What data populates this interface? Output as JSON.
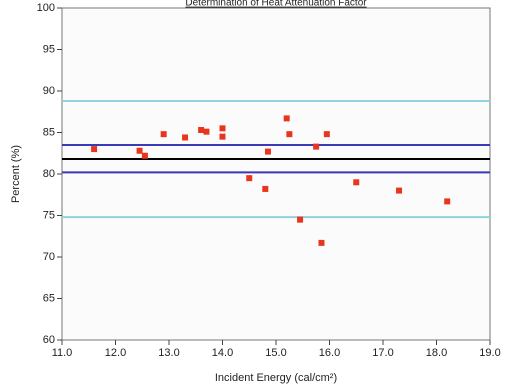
{
  "chart_data": {
    "type": "scatter",
    "title": "Determination of Heat Attenuation Factor",
    "xlabel": "Incident Energy (cal/cm²)",
    "ylabel": "Percent (%)",
    "x": [
      11.6,
      12.45,
      12.55,
      12.9,
      13.3,
      13.6,
      13.7,
      14.0,
      14.0,
      14.5,
      14.8,
      14.85,
      15.2,
      15.25,
      15.45,
      15.75,
      15.85,
      15.95,
      16.5,
      17.3,
      18.2
    ],
    "values": [
      83.0,
      82.8,
      82.2,
      84.8,
      84.4,
      85.3,
      85.1,
      84.5,
      85.5,
      79.5,
      78.2,
      82.7,
      86.7,
      84.8,
      74.5,
      83.3,
      71.7,
      84.8,
      79.0,
      78.0,
      76.7
    ],
    "color": "#e8361e",
    "reference_lines": [
      {
        "value": 88.8,
        "color": "#8fd3e0"
      },
      {
        "value": 83.5,
        "color": "#3a3ab8"
      },
      {
        "value": 81.8,
        "color": "#000000"
      },
      {
        "value": 80.2,
        "color": "#3a3ab8"
      },
      {
        "value": 74.8,
        "color": "#8fd3e0"
      }
    ],
    "xlim": [
      11.0,
      19.0
    ],
    "xticks": [
      {
        "value": 11,
        "label": "11.0"
      },
      {
        "value": 12,
        "label": "12.0"
      },
      {
        "value": 13,
        "label": "13.0"
      },
      {
        "value": 14,
        "label": "14.0"
      },
      {
        "value": 15,
        "label": "15.0"
      },
      {
        "value": 16,
        "label": "16.0"
      },
      {
        "value": 17,
        "label": "17.0"
      },
      {
        "value": 18,
        "label": "18.0"
      },
      {
        "value": 19,
        "label": "19.0"
      }
    ],
    "ylim": [
      60,
      100
    ],
    "yticks": [
      60,
      65,
      70,
      75,
      80,
      85,
      90,
      95,
      100
    ]
  }
}
